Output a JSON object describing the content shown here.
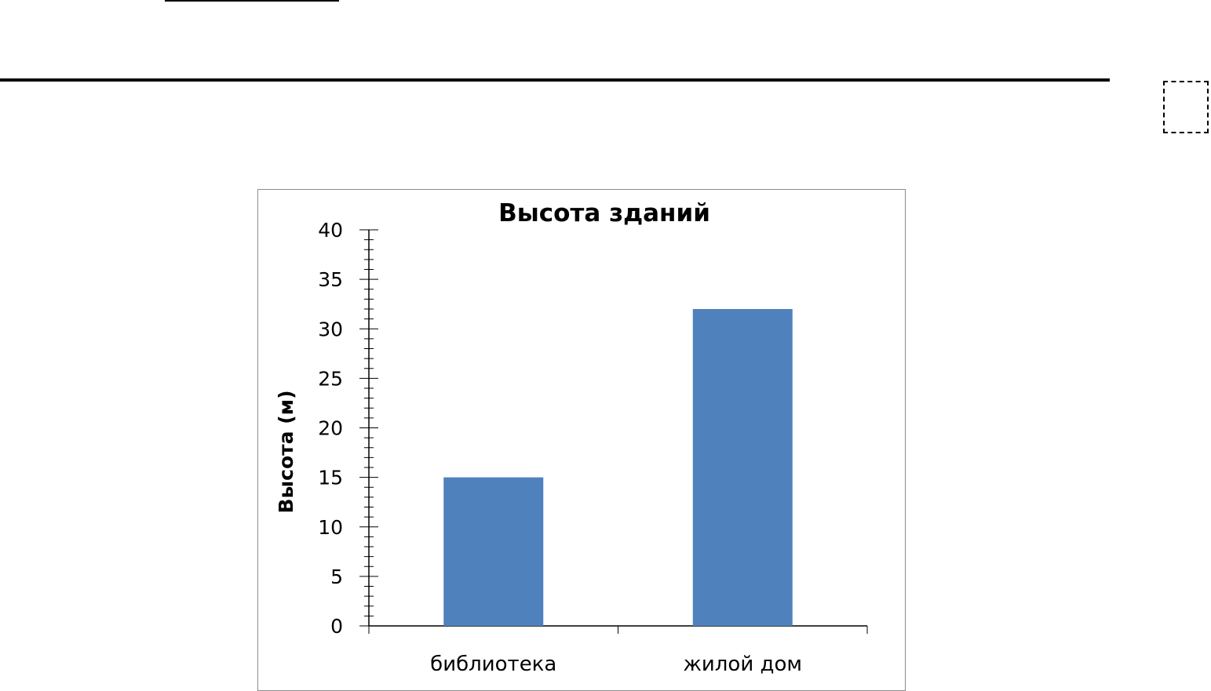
{
  "chart_data": {
    "type": "bar",
    "title": "Высота зданий",
    "xlabel": "",
    "ylabel": "Высота (м)",
    "categories": [
      "библиотека",
      "жилой дом"
    ],
    "values": [
      15,
      32
    ],
    "ylim": [
      0,
      40
    ],
    "yticks": [
      "0",
      "5",
      "10",
      "15",
      "20",
      "25",
      "30",
      "35",
      "40"
    ],
    "bar_color": "#4f81bd",
    "grid": false,
    "legend": "none"
  }
}
